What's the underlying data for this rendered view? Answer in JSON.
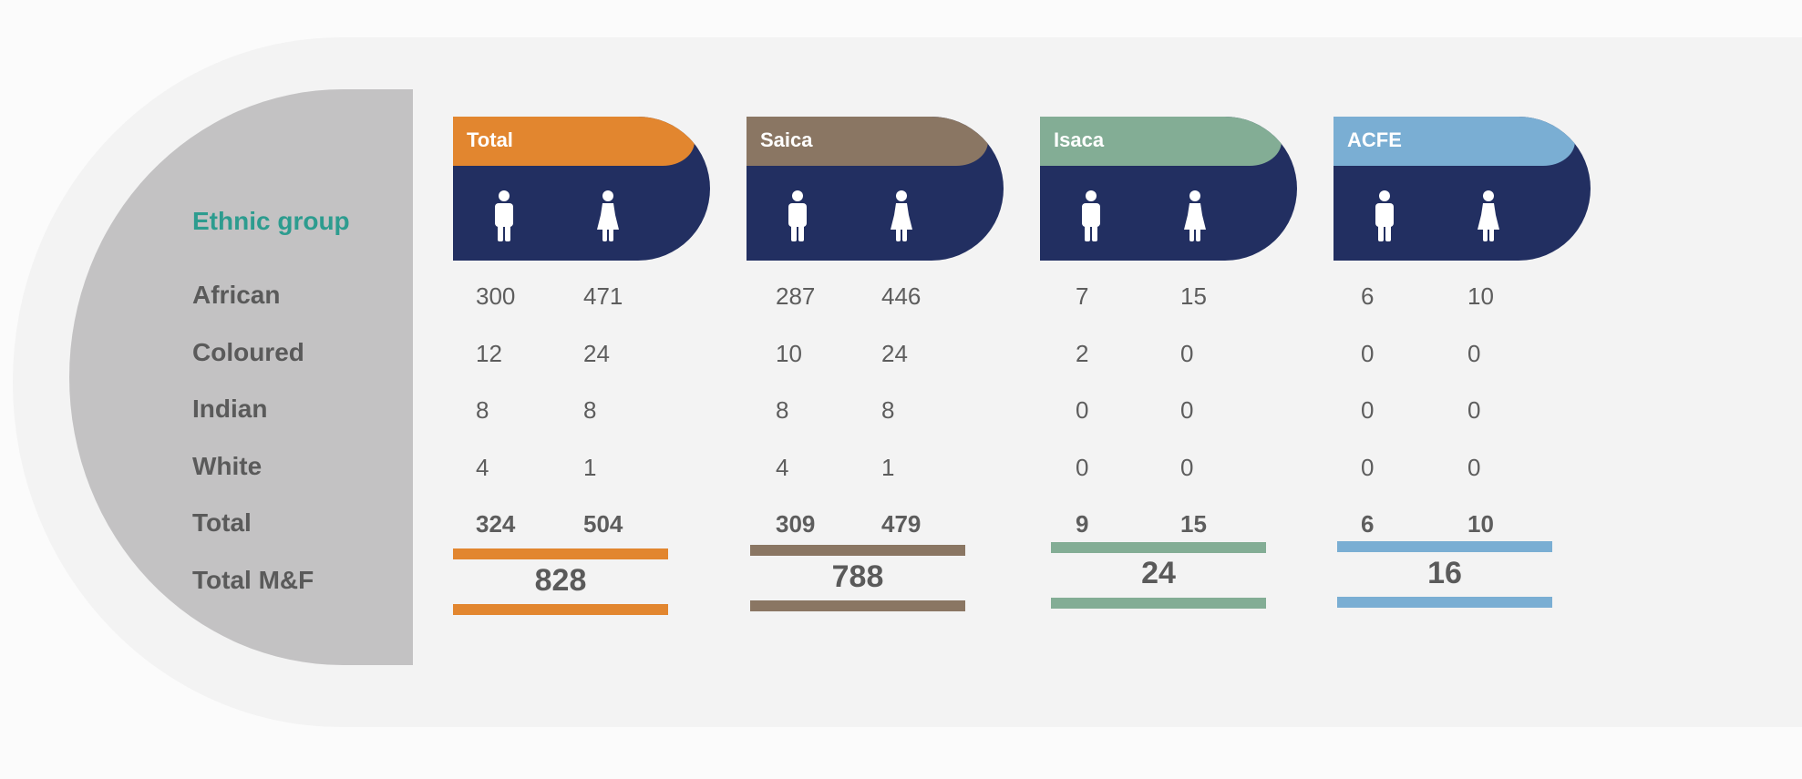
{
  "row_header": "Ethnic group",
  "rows": [
    "African",
    "Coloured",
    "Indian",
    "White",
    "Total",
    "Total M&F"
  ],
  "groups": [
    {
      "name": "Total",
      "color": "#e2862f",
      "values": [
        [
          "300",
          "471"
        ],
        [
          "12",
          "24"
        ],
        [
          "8",
          "8"
        ],
        [
          "4",
          "1"
        ]
      ],
      "totals": [
        "324",
        "504"
      ],
      "total_mf": "828"
    },
    {
      "name": "Saica",
      "color": "#8a7663",
      "values": [
        [
          "287",
          "446"
        ],
        [
          "10",
          "24"
        ],
        [
          "8",
          "8"
        ],
        [
          "4",
          "1"
        ]
      ],
      "totals": [
        "309",
        "479"
      ],
      "total_mf": "788"
    },
    {
      "name": "Isaca",
      "color": "#83ad95",
      "values": [
        [
          "7",
          "15"
        ],
        [
          "2",
          "0"
        ],
        [
          "0",
          "0"
        ],
        [
          "0",
          "0"
        ]
      ],
      "totals": [
        "9",
        "15"
      ],
      "total_mf": "24"
    },
    {
      "name": "ACFE",
      "color": "#7aaed3",
      "values": [
        [
          "6",
          "10"
        ],
        [
          "0",
          "0"
        ],
        [
          "0",
          "0"
        ],
        [
          "0",
          "0"
        ]
      ],
      "totals": [
        "6",
        "10"
      ],
      "total_mf": "16"
    }
  ],
  "icons": [
    "male-icon",
    "female-icon"
  ],
  "card_color": "#222f61"
}
